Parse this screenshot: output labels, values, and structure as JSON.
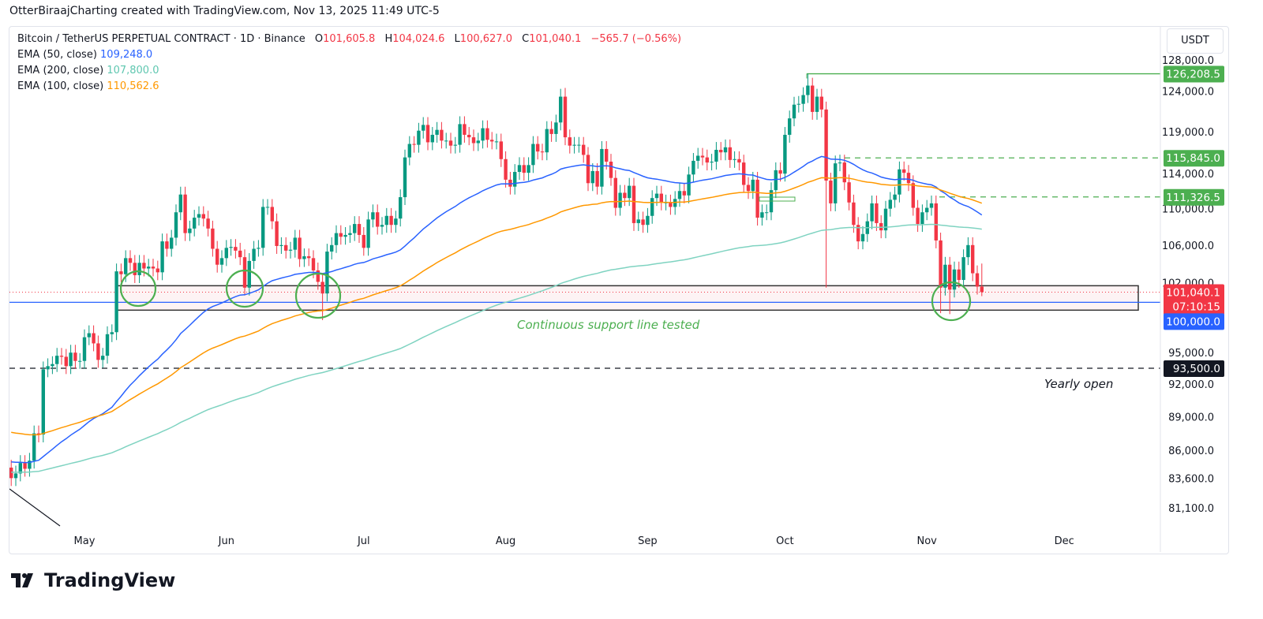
{
  "credit": "OtterBiraajCharting created with TradingView.com, Nov 13, 2025 11:49 UTC-5",
  "legend": {
    "symbol": "Bitcoin / TetherUS PERPETUAL CONTRACT · 1D · Binance",
    "o_label": "O",
    "o": "101,605.8",
    "h_label": "H",
    "h": "104,024.6",
    "l_label": "L",
    "l": "100,627.0",
    "c_label": "C",
    "c": "101,040.1",
    "change": "−565.7 (−0.56%)",
    "ema50_label": "EMA (50, close)",
    "ema50": "109,248.0",
    "ema200_label": "EMA (200, close)",
    "ema200": "107,800.0",
    "ema100_label": "EMA (100, close)",
    "ema100": "110,562.6"
  },
  "currency": "USDT",
  "brand": "TradingView",
  "colors": {
    "up": "#089981",
    "down": "#f23645",
    "ema50": "#2962ff",
    "ema100": "#ff9800",
    "ema200": "#7fd3c1",
    "annotation": "#4caf50",
    "support_line": "#2962ff"
  },
  "annotations": {
    "support_text": "Continuous support line tested",
    "yearly_open_text": "Yearly open"
  },
  "chart_data": {
    "type": "candlestick",
    "scale": "log",
    "ylim": [
      79500,
      130500
    ],
    "yticks": [
      128000,
      124000,
      119000,
      114000,
      110000,
      106000,
      102000,
      95000,
      92000,
      89000,
      86000,
      83600,
      81100
    ],
    "ytick_labels": [
      "128,000.0",
      "124,000.0",
      "119,000.0",
      "114,000.0",
      "110,000.0",
      "106,000.0",
      "102,000.0",
      "95,000.0",
      "92,000.0",
      "89,000.0",
      "86,000.0",
      "83,600.0",
      "81,100.0"
    ],
    "xticks": [
      {
        "label": "May",
        "date": "2025-05-01"
      },
      {
        "label": "Jun",
        "date": "2025-06-01"
      },
      {
        "label": "Jul",
        "date": "2025-07-01"
      },
      {
        "label": "Aug",
        "date": "2025-08-01"
      },
      {
        "label": "Sep",
        "date": "2025-09-01"
      },
      {
        "label": "Oct",
        "date": "2025-10-01"
      },
      {
        "label": "Nov",
        "date": "2025-11-01"
      },
      {
        "label": "Dec",
        "date": "2025-12-01"
      }
    ],
    "start_date": "2025-04-15",
    "first_open": 84500,
    "closes": [
      83600,
      84000,
      84900,
      84400,
      85100,
      87500,
      87400,
      93400,
      93700,
      93900,
      94700,
      94600,
      93700,
      95000,
      94200,
      94200,
      96500,
      96900,
      95900,
      94300,
      94700,
      96800,
      97000,
      103200,
      102900,
      104600,
      104100,
      102800,
      104100,
      103500,
      103700,
      103500,
      103100,
      106400,
      105600,
      106800,
      109600,
      111600,
      107300,
      107800,
      109000,
      109400,
      108900,
      107800,
      105600,
      103900,
      104600,
      105700,
      105800,
      105400,
      104700,
      101500,
      104300,
      105600,
      105700,
      110200,
      110200,
      108600,
      105900,
      106000,
      105400,
      105500,
      106800,
      104500,
      104800,
      104600,
      103300,
      102100,
      100900,
      105300,
      106000,
      107300,
      106900,
      107100,
      107300,
      108300,
      107100,
      105700,
      108800,
      109600,
      108000,
      108200,
      109200,
      108200,
      108900,
      111300,
      115900,
      117500,
      117400,
      119100,
      119800,
      117700,
      118600,
      119200,
      117900,
      117900,
      117300,
      117400,
      119900,
      118600,
      118300,
      117600,
      117900,
      119400,
      118000,
      117800,
      117800,
      115700,
      113300,
      112500,
      114200,
      115000,
      114100,
      115000,
      117500,
      116600,
      116500,
      119300,
      118700,
      120100,
      123300,
      118300,
      117300,
      117400,
      117400,
      116200,
      112900,
      114300,
      112500,
      116900,
      115400,
      113500,
      110100,
      111800,
      111200,
      112600,
      108400,
      108800,
      108200,
      109200,
      111200,
      111700,
      110700,
      110700,
      110200,
      111100,
      112000,
      111500,
      113900,
      115500,
      116100,
      115900,
      115300,
      115400,
      116800,
      116500,
      117100,
      115600,
      115700,
      115300,
      112700,
      112000,
      113300,
      109000,
      109600,
      109600,
      112100,
      114400,
      114000,
      118600,
      120600,
      122300,
      122400,
      123500,
      124700,
      121400,
      123300,
      121700,
      113200,
      110600,
      115200,
      115300,
      113000,
      110700,
      108200,
      106400,
      107200,
      108600,
      110600,
      108400,
      107600,
      110000,
      111000,
      111600,
      114500,
      114100,
      112900,
      110100,
      108300,
      109600,
      110100,
      110600,
      106500,
      101500,
      103900,
      101300,
      103400,
      102300,
      104700,
      106000,
      103000,
      101605.8,
      101040.1
    ],
    "low_overrides": {
      "2025-10-10": 101500,
      "2025-06-22": 98200,
      "2025-11-13": 100627.0,
      "2025-11-04": 98900,
      "2025-11-06": 98800
    },
    "high_overrides": {
      "2025-10-06": 126208.5,
      "2025-11-13": 104024.6,
      "2025-08-14": 124400
    },
    "series": [
      {
        "name": "EMA (50, close)",
        "period": 50,
        "start_value": 85000,
        "last": 109248.0
      },
      {
        "name": "EMA (100, close)",
        "period": 100,
        "start_value": 87600,
        "last": 110562.6
      },
      {
        "name": "EMA (200, close)",
        "period": 200,
        "start_value": 84100,
        "last": 107800.0
      }
    ],
    "levels": [
      {
        "label": "126,208.5",
        "price": 126208.5,
        "style": "solid",
        "color": "#4caf50"
      },
      {
        "label": "115,845.0",
        "price": 115845.0,
        "style": "dashed",
        "color": "#4caf50"
      },
      {
        "label": "111,326.5",
        "price": 111326.5,
        "style": "dashed",
        "color": "#4caf50"
      },
      {
        "label": "100,000.0",
        "price": 100000.0,
        "style": "solid",
        "color": "#2962ff"
      },
      {
        "label": "93,500.0",
        "price": 93500.0,
        "style": "dashed",
        "color": "#131722"
      }
    ],
    "last_price": {
      "label": "101,040.1",
      "price": 101040.1,
      "countdown": "07:10:15"
    },
    "support_zone": [
      99200,
      101700
    ]
  }
}
